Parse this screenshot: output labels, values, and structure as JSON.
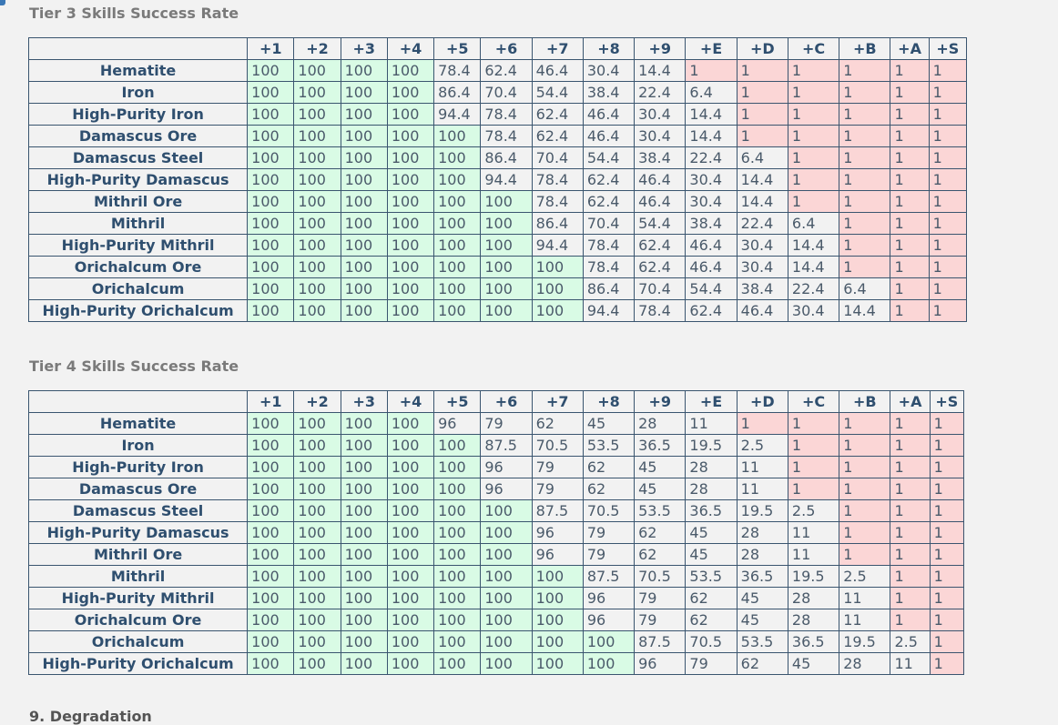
{
  "columns": [
    "+1",
    "+2",
    "+3",
    "+4",
    "+5",
    "+6",
    "+7",
    "+8",
    "+9",
    "+E",
    "+D",
    "+C",
    "+B",
    "+A",
    "+S"
  ],
  "colors": {
    "full_success": "#d9fbe5",
    "min_success": "#fbd6d6",
    "partial": "#f2f2f2"
  },
  "tier3": {
    "title": "Tier 3 Skills Success Rate",
    "rows": [
      {
        "label": "Hematite",
        "values": [
          "100",
          "100",
          "100",
          "100",
          "78.4",
          "62.4",
          "46.4",
          "30.4",
          "14.4",
          "1",
          "1",
          "1",
          "1",
          "1",
          "1"
        ]
      },
      {
        "label": "Iron",
        "values": [
          "100",
          "100",
          "100",
          "100",
          "86.4",
          "70.4",
          "54.4",
          "38.4",
          "22.4",
          "6.4",
          "1",
          "1",
          "1",
          "1",
          "1"
        ]
      },
      {
        "label": "High-Purity Iron",
        "values": [
          "100",
          "100",
          "100",
          "100",
          "94.4",
          "78.4",
          "62.4",
          "46.4",
          "30.4",
          "14.4",
          "1",
          "1",
          "1",
          "1",
          "1"
        ]
      },
      {
        "label": "Damascus Ore",
        "values": [
          "100",
          "100",
          "100",
          "100",
          "100",
          "78.4",
          "62.4",
          "46.4",
          "30.4",
          "14.4",
          "1",
          "1",
          "1",
          "1",
          "1"
        ]
      },
      {
        "label": "Damascus Steel",
        "values": [
          "100",
          "100",
          "100",
          "100",
          "100",
          "86.4",
          "70.4",
          "54.4",
          "38.4",
          "22.4",
          "6.4",
          "1",
          "1",
          "1",
          "1"
        ]
      },
      {
        "label": "High-Purity Damascus",
        "values": [
          "100",
          "100",
          "100",
          "100",
          "100",
          "94.4",
          "78.4",
          "62.4",
          "46.4",
          "30.4",
          "14.4",
          "1",
          "1",
          "1",
          "1"
        ]
      },
      {
        "label": "Mithril Ore",
        "values": [
          "100",
          "100",
          "100",
          "100",
          "100",
          "100",
          "78.4",
          "62.4",
          "46.4",
          "30.4",
          "14.4",
          "1",
          "1",
          "1",
          "1"
        ]
      },
      {
        "label": "Mithril",
        "values": [
          "100",
          "100",
          "100",
          "100",
          "100",
          "100",
          "86.4",
          "70.4",
          "54.4",
          "38.4",
          "22.4",
          "6.4",
          "1",
          "1",
          "1"
        ]
      },
      {
        "label": "High-Purity Mithril",
        "values": [
          "100",
          "100",
          "100",
          "100",
          "100",
          "100",
          "94.4",
          "78.4",
          "62.4",
          "46.4",
          "30.4",
          "14.4",
          "1",
          "1",
          "1"
        ]
      },
      {
        "label": "Orichalcum Ore",
        "values": [
          "100",
          "100",
          "100",
          "100",
          "100",
          "100",
          "100",
          "78.4",
          "62.4",
          "46.4",
          "30.4",
          "14.4",
          "1",
          "1",
          "1"
        ]
      },
      {
        "label": "Orichalcum",
        "values": [
          "100",
          "100",
          "100",
          "100",
          "100",
          "100",
          "100",
          "86.4",
          "70.4",
          "54.4",
          "38.4",
          "22.4",
          "6.4",
          "1",
          "1"
        ]
      },
      {
        "label": "High-Purity Orichalcum",
        "values": [
          "100",
          "100",
          "100",
          "100",
          "100",
          "100",
          "100",
          "94.4",
          "78.4",
          "62.4",
          "46.4",
          "30.4",
          "14.4",
          "1",
          "1"
        ]
      }
    ]
  },
  "tier4": {
    "title": "Tier 4 Skills Success Rate",
    "rows": [
      {
        "label": "Hematite",
        "values": [
          "100",
          "100",
          "100",
          "100",
          "96",
          "79",
          "62",
          "45",
          "28",
          "11",
          "1",
          "1",
          "1",
          "1",
          "1"
        ]
      },
      {
        "label": "Iron",
        "values": [
          "100",
          "100",
          "100",
          "100",
          "100",
          "87.5",
          "70.5",
          "53.5",
          "36.5",
          "19.5",
          "2.5",
          "1",
          "1",
          "1",
          "1"
        ]
      },
      {
        "label": "High-Purity Iron",
        "values": [
          "100",
          "100",
          "100",
          "100",
          "100",
          "96",
          "79",
          "62",
          "45",
          "28",
          "11",
          "1",
          "1",
          "1",
          "1"
        ]
      },
      {
        "label": "Damascus Ore",
        "values": [
          "100",
          "100",
          "100",
          "100",
          "100",
          "96",
          "79",
          "62",
          "45",
          "28",
          "11",
          "1",
          "1",
          "1",
          "1"
        ]
      },
      {
        "label": "Damascus Steel",
        "values": [
          "100",
          "100",
          "100",
          "100",
          "100",
          "100",
          "87.5",
          "70.5",
          "53.5",
          "36.5",
          "19.5",
          "2.5",
          "1",
          "1",
          "1"
        ]
      },
      {
        "label": "High-Purity Damascus",
        "values": [
          "100",
          "100",
          "100",
          "100",
          "100",
          "100",
          "96",
          "79",
          "62",
          "45",
          "28",
          "11",
          "1",
          "1",
          "1"
        ]
      },
      {
        "label": "Mithril Ore",
        "values": [
          "100",
          "100",
          "100",
          "100",
          "100",
          "100",
          "96",
          "79",
          "62",
          "45",
          "28",
          "11",
          "1",
          "1",
          "1"
        ]
      },
      {
        "label": "Mithril",
        "values": [
          "100",
          "100",
          "100",
          "100",
          "100",
          "100",
          "100",
          "87.5",
          "70.5",
          "53.5",
          "36.5",
          "19.5",
          "2.5",
          "1",
          "1"
        ]
      },
      {
        "label": "High-Purity Mithril",
        "values": [
          "100",
          "100",
          "100",
          "100",
          "100",
          "100",
          "100",
          "96",
          "79",
          "62",
          "45",
          "28",
          "11",
          "1",
          "1"
        ]
      },
      {
        "label": "Orichalcum Ore",
        "values": [
          "100",
          "100",
          "100",
          "100",
          "100",
          "100",
          "100",
          "96",
          "79",
          "62",
          "45",
          "28",
          "11",
          "1",
          "1"
        ]
      },
      {
        "label": "Orichalcum",
        "values": [
          "100",
          "100",
          "100",
          "100",
          "100",
          "100",
          "100",
          "100",
          "87.5",
          "70.5",
          "53.5",
          "36.5",
          "19.5",
          "2.5",
          "1"
        ]
      },
      {
        "label": "High-Purity Orichalcum",
        "values": [
          "100",
          "100",
          "100",
          "100",
          "100",
          "100",
          "100",
          "100",
          "96",
          "79",
          "62",
          "45",
          "28",
          "11",
          "1"
        ]
      }
    ]
  },
  "next_section": {
    "heading": "9. Degradation"
  }
}
